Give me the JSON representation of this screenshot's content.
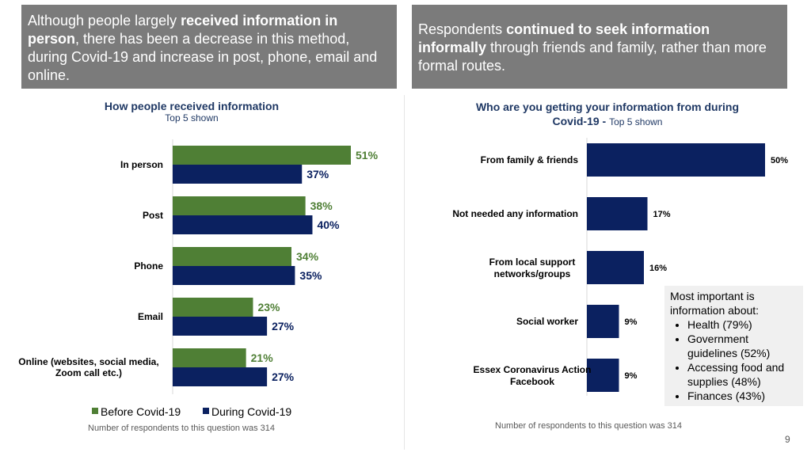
{
  "banners": {
    "left": [
      {
        "text": "Although people largely ",
        "bold": false
      },
      {
        "text": "received information in person",
        "bold": true
      },
      {
        "text": ", there has been a decrease in this method, during Covid-19 and increase in post, phone, email and online.",
        "bold": false
      }
    ],
    "right": [
      {
        "text": "Respondents ",
        "bold": false
      },
      {
        "text": "continued to seek information informally",
        "bold": true
      },
      {
        "text": " through friends and family, rather than more formal routes.",
        "bold": false
      }
    ]
  },
  "left_chart": {
    "title": "How people received information",
    "subtitle": "Top 5 shown",
    "note": "Number of respondents to this question was 314"
  },
  "right_chart": {
    "title_main": "Who are you getting your information from during Covid-19 - ",
    "title_sub": "Top 5 shown",
    "note": "Number of respondents to this question was 314"
  },
  "callout": {
    "intro": "Most important is information about:",
    "items": [
      "Health (79%)",
      "Government guidelines (52%)",
      "Accessing food and supplies (48%)",
      "Finances (43%)"
    ]
  },
  "page_number": "9",
  "colors": {
    "before": "#4f7f35",
    "during": "#0b2160",
    "banner": "#7b7b7b",
    "title": "#1f3864"
  },
  "chart_data": [
    {
      "type": "bar",
      "orientation": "horizontal",
      "title": "How people received information",
      "subtitle": "Top 5 shown",
      "categories": [
        "In person",
        "Post",
        "Phone",
        "Email",
        "Online (websites, social media, Zoom call etc.)"
      ],
      "series": [
        {
          "name": "Before Covid-19",
          "values": [
            51,
            38,
            34,
            23,
            21
          ],
          "color": "#4f7f35"
        },
        {
          "name": "During Covid-19",
          "values": [
            37,
            40,
            35,
            27,
            27
          ],
          "color": "#0b2160"
        }
      ],
      "unit": "%",
      "xlim": [
        0,
        60
      ],
      "legend": "bottom",
      "grid": false
    },
    {
      "type": "bar",
      "orientation": "horizontal",
      "title": "Who are you getting your information from during Covid-19 - Top 5 shown",
      "categories": [
        "From family & friends",
        "Not needed any information",
        "From local support networks/groups",
        "Social worker",
        "Essex Coronavirus Action Facebook"
      ],
      "values": [
        50,
        17,
        16,
        9,
        9
      ],
      "unit": "%",
      "xlim": [
        0,
        50
      ],
      "color": "#0b2160",
      "legend": "none",
      "grid": false
    }
  ]
}
